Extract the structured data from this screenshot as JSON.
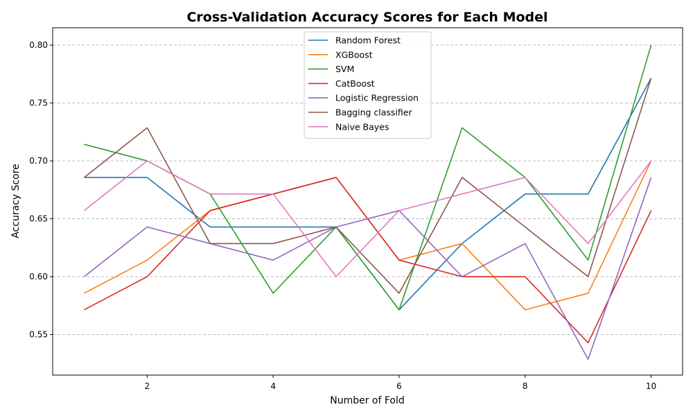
{
  "chart_data": {
    "type": "line",
    "title": "Cross-Validation Accuracy Scores for Each Model",
    "xlabel": "Number of Fold",
    "ylabel": "Accuracy Score",
    "x": [
      1,
      2,
      3,
      4,
      5,
      6,
      7,
      8,
      9,
      10
    ],
    "xlim": [
      0.5,
      10.5
    ],
    "ylim": [
      0.515,
      0.815
    ],
    "xticks": [
      2,
      4,
      6,
      8,
      10
    ],
    "yticks": [
      0.55,
      0.6,
      0.65,
      0.7,
      0.75,
      0.8
    ],
    "ytick_labels": [
      "0.55",
      "0.60",
      "0.65",
      "0.70",
      "0.75",
      "0.80"
    ],
    "grid": "y-dashed",
    "legend_position": "top-center",
    "series": [
      {
        "name": "Random Forest",
        "color": "#1f77b4",
        "values": [
          0.6857,
          0.6857,
          0.6429,
          0.6429,
          0.6429,
          0.5714,
          0.6286,
          0.6714,
          0.6714,
          0.7714
        ]
      },
      {
        "name": "XGBoost",
        "color": "#ff7f0e",
        "values": [
          0.5857,
          0.6143,
          0.6571,
          0.6714,
          0.6857,
          0.6143,
          0.6286,
          0.5714,
          0.5857,
          0.7
        ]
      },
      {
        "name": "SVM",
        "color": "#2ca02c",
        "values": [
          0.7143,
          0.7,
          0.6714,
          0.5857,
          0.6429,
          0.5714,
          0.7286,
          0.6857,
          0.6143,
          0.8
        ]
      },
      {
        "name": "CatBoost",
        "color": "#d62728",
        "values": [
          0.5714,
          0.6,
          0.6571,
          0.6714,
          0.6857,
          0.6143,
          0.6,
          0.6,
          0.5429,
          0.6571
        ]
      },
      {
        "name": "Logistic Regression",
        "color": "#9467bd",
        "values": [
          0.6,
          0.6429,
          0.6286,
          0.6143,
          0.6429,
          0.6571,
          0.6,
          0.6286,
          0.5286,
          0.6857
        ]
      },
      {
        "name": "Bagging classifier",
        "color": "#8c564b",
        "values": [
          0.6857,
          0.7286,
          0.6286,
          0.6286,
          0.6429,
          0.5857,
          0.6857,
          0.6429,
          0.6,
          0.7714
        ]
      },
      {
        "name": "Naive Bayes",
        "color": "#e377c2",
        "values": [
          0.6571,
          0.7,
          0.6714,
          0.6714,
          0.6,
          0.6571,
          0.6714,
          0.6857,
          0.6286,
          0.7
        ]
      }
    ]
  }
}
